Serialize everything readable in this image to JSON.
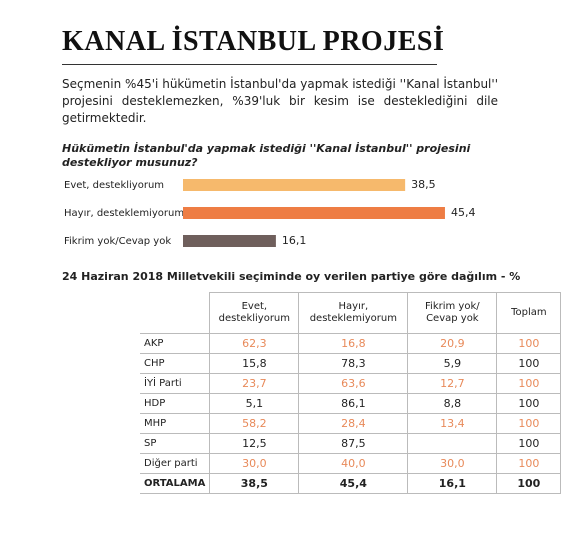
{
  "header": {
    "title": "KANAL İSTANBUL PROJESİ",
    "intro": "Seçmenin %45'i hükümetin İstanbul'da yapmak istediği ''Kanal İstanbul'' projesini desteklemezken, %39'luk bir kesim ise desteklediğini dile getirmektedir."
  },
  "chart_data": {
    "type": "bar",
    "orientation": "horizontal",
    "title": "Hükümetin İstanbul'da yapmak istediği ''Kanal İstanbul'' projesini destekliyor musunuz?",
    "categories": [
      "Evet, destekliyorum",
      "Hayır, desteklemiyorum",
      "Fikrim yok/Cevap yok"
    ],
    "values": [
      38.5,
      45.4,
      16.1
    ],
    "value_labels": [
      "38,5",
      "45,4",
      "16,1"
    ],
    "colors": [
      "#f6b96c",
      "#ee7d44",
      "#6f5f5c"
    ]
  },
  "table": {
    "title": "24 Haziran 2018 Milletvekili seçiminde oy verilen partiye göre dağılım - %",
    "columns": [
      null,
      "Evet, destekliyorum",
      "Hayır, desteklemiyorum",
      "Fikrim yok/ Cevap yok",
      "Toplam"
    ],
    "rows": [
      [
        "AKP",
        "62,3",
        "16,8",
        "20,9",
        "100"
      ],
      [
        "CHP",
        "15,8",
        "78,3",
        "5,9",
        "100"
      ],
      [
        "İYİ Parti",
        "23,7",
        "63,6",
        "12,7",
        "100"
      ],
      [
        "HDP",
        "5,1",
        "86,1",
        "8,8",
        "100"
      ],
      [
        "MHP",
        "58,2",
        "28,4",
        "13,4",
        "100"
      ],
      [
        "SP",
        "12,5",
        "87,5",
        null,
        "100"
      ],
      [
        "Diğer parti",
        "30,0",
        "40,0",
        "30,0",
        "100"
      ],
      [
        "ORTALAMA",
        "38,5",
        "45,4",
        "16,1",
        "100"
      ]
    ]
  }
}
